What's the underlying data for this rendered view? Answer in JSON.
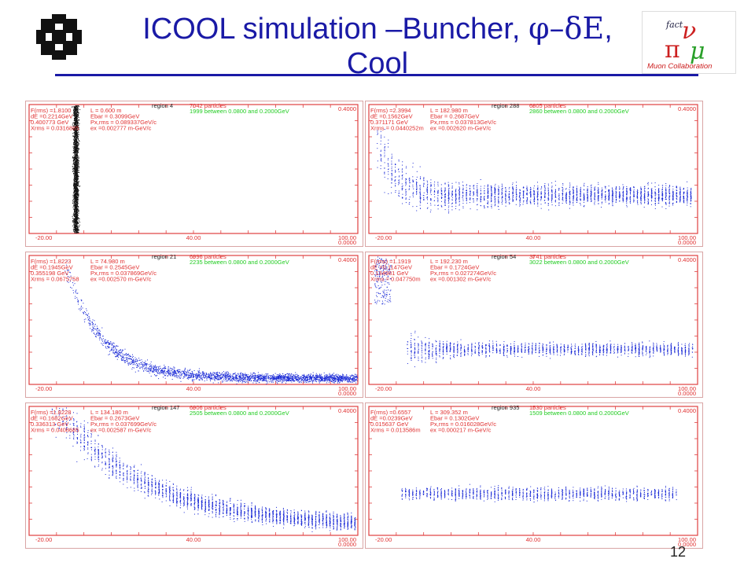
{
  "title": {
    "line1": "ICOOL simulation –Buncher, ",
    "symbol": "φ–δE",
    "line1_end": ",",
    "line2": "Cool"
  },
  "logos": {
    "muon_text": "Muon Collaboration",
    "fact_text": "fact"
  },
  "page_number": "12",
  "colors": {
    "title": "#1a1aa6",
    "frame": "#e04040",
    "points": "#1a2ad6",
    "points_dark": "#111111",
    "info_red": "#e03030",
    "info_green": "#22cc22"
  },
  "chart_data": [
    {
      "type": "scatter",
      "region": "4",
      "particles": "7042 particles",
      "good": "1999 between 0.0800 and 0.2000GeV",
      "info": [
        "F(rms) =1.8100",
        "dE =0.2214GeV",
        "0.400773 GeV",
        "Xrms = 0.0316885"
      ],
      "info2": [
        "L =   0.600 m",
        "Ebar =  0.3099GeV",
        "Px,rms = 0.089337GeV/c",
        "ex =0.002777 m-GeV/c"
      ],
      "xlim": [
        -20,
        100
      ],
      "ylim": [
        0,
        0.4
      ],
      "xticks": [
        "-20.00",
        "40.00",
        "100.00"
      ],
      "yticks": [
        "0.4000",
        "0.0000"
      ],
      "shape": "column",
      "dark": true
    },
    {
      "type": "scatter",
      "region": "288",
      "particles": "6805 particles",
      "good": "2860 between 0.0800 and 0.2000GeV",
      "info": [
        "F(rms) =2.3994",
        "dE =0.1562GeV",
        "0.371171 GeV",
        "Xrms = 0.0440252m"
      ],
      "info2": [
        "L = 182.980 m",
        "Ebar =  0.2687GeV",
        "Px,rms = 0.037813GeV/c",
        "ex =0.002620 m-GeV/c"
      ],
      "xlim": [
        -20,
        100
      ],
      "ylim": [
        0,
        0.4
      ],
      "xticks": [
        "-20.00",
        "40.00",
        "100.00"
      ],
      "yticks": [
        "0.4000",
        "0.0000"
      ],
      "shape": "band_wide"
    },
    {
      "type": "scatter",
      "region": "21",
      "particles": "6996 particles",
      "good": "2235 between 0.0800 and 0.2000GeV",
      "info": [
        "F(rms) =1.8223",
        "dE =0.1945GeV",
        "0.355198 GeV",
        "Xrms = 0.0675758"
      ],
      "info2": [
        "L =  74.980 m",
        "Ebar =  0.2545GeV",
        "Px,rms = 0.037869GeV/c",
        "ex =0.002570 m-GeV/c"
      ],
      "xlim": [
        -20,
        100
      ],
      "ylim": [
        0,
        0.4
      ],
      "xticks": [
        "-20.00",
        "40.00",
        "100.00"
      ],
      "yticks": [
        "0.4000",
        "0.0000"
      ],
      "shape": "curve_tight"
    },
    {
      "type": "scatter",
      "region": "54",
      "particles": "3741 particles",
      "good": "3022 between 0.0800 and 0.2000GeV",
      "info": [
        "F(rms) =1.1919",
        "dE =0.1147GeV",
        "0.134981 GeV",
        "Xrms = 0.047750m"
      ],
      "info2": [
        "L = 192.230 m",
        "Ebar =  0.1724GeV",
        "Px,rms = 0.027274GeV/c",
        "ex =0.001302 m-GeV/c"
      ],
      "xlim": [
        -20,
        100
      ],
      "ylim": [
        0,
        0.4
      ],
      "xticks": [
        "-20.00",
        "40.00",
        "100.00"
      ],
      "yticks": [
        "0.4000",
        "0.0000"
      ],
      "shape": "band_mid"
    },
    {
      "type": "scatter",
      "region": "147",
      "particles": "6906 particles",
      "good": "2505 between 0.0800 and 0.2000GeV",
      "info": [
        "F(rms) =1.8228",
        "dE =0.1682GeV",
        "0.336313 GeV",
        "Xrms = 0.0408685"
      ],
      "info2": [
        "L = 134.180 m",
        "Ebar =  0.2673GeV",
        "Px,rms = 0.037699GeV/c",
        "ex =0.002587 m-GeV/c"
      ],
      "xlim": [
        -20,
        100
      ],
      "ylim": [
        0,
        0.4
      ],
      "xticks": [
        "-20.00",
        "40.00",
        "100.00"
      ],
      "yticks": [
        "0.4000",
        "0.0000"
      ],
      "shape": "curve_wide"
    },
    {
      "type": "scatter",
      "region": "935",
      "particles": "1530 particles",
      "good": "1509 between 0.0800 and 0.2000GeV",
      "info": [
        "F(rms) =0.6557",
        "dE =0.0239GeV",
        "0.015637 GeV",
        "Xrms = 0.013586m"
      ],
      "info2": [
        "L = 309.352 m",
        "Ebar =  0.1302GeV",
        "Px,rms = 0.016028GeV/c",
        "ex =0.000217 m-GeV/c"
      ],
      "xlim": [
        -20,
        100
      ],
      "ylim": [
        0,
        0.4
      ],
      "xticks": [
        "-20.00",
        "40.00",
        "100.00"
      ],
      "yticks": [
        "0.4000",
        "0.0000"
      ],
      "shape": "band_thin"
    }
  ]
}
